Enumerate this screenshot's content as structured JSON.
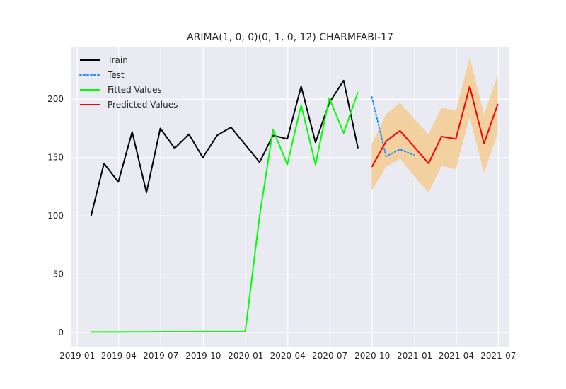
{
  "chart_data": {
    "type": "line",
    "title": "ARIMA(1, 0, 0)(0, 1, 0, 12) CHARMFABI-17",
    "xlabel": "",
    "ylabel": "",
    "x_range": [
      "2018-12-18",
      "2021-07-25"
    ],
    "ylim": [
      -12,
      245
    ],
    "x_ticks": [
      {
        "date": "2019-01-01",
        "label": "2019-01"
      },
      {
        "date": "2019-04-01",
        "label": "2019-04"
      },
      {
        "date": "2019-07-01",
        "label": "2019-07"
      },
      {
        "date": "2019-10-01",
        "label": "2019-10"
      },
      {
        "date": "2020-01-01",
        "label": "2020-01"
      },
      {
        "date": "2020-04-01",
        "label": "2020-04"
      },
      {
        "date": "2020-07-01",
        "label": "2020-07"
      },
      {
        "date": "2020-10-01",
        "label": "2020-10"
      },
      {
        "date": "2021-01-01",
        "label": "2021-01"
      },
      {
        "date": "2021-04-01",
        "label": "2021-04"
      },
      {
        "date": "2021-07-01",
        "label": "2021-07"
      }
    ],
    "y_ticks": [
      0,
      50,
      100,
      150,
      200
    ],
    "grid": true,
    "legend_position": "top-left",
    "series": [
      {
        "name": "Train",
        "color": "#000000",
        "style": "solid",
        "points": [
          [
            "2019-01-31",
            100
          ],
          [
            "2019-02-28",
            145
          ],
          [
            "2019-03-31",
            129
          ],
          [
            "2019-04-30",
            172
          ],
          [
            "2019-05-31",
            120
          ],
          [
            "2019-06-30",
            175
          ],
          [
            "2019-07-31",
            158
          ],
          [
            "2019-08-31",
            170
          ],
          [
            "2019-09-30",
            150
          ],
          [
            "2019-10-31",
            169
          ],
          [
            "2019-11-30",
            176
          ],
          [
            "2019-12-31",
            161
          ],
          [
            "2020-01-31",
            146
          ],
          [
            "2020-02-29",
            169
          ],
          [
            "2020-03-31",
            166
          ],
          [
            "2020-04-30",
            211
          ],
          [
            "2020-05-31",
            163
          ],
          [
            "2020-06-30",
            197
          ],
          [
            "2020-07-31",
            216
          ],
          [
            "2020-08-31",
            158
          ]
        ]
      },
      {
        "name": "Test",
        "color": "#1e90ff",
        "style": "dotted",
        "points": [
          [
            "2020-09-30",
            202
          ],
          [
            "2020-10-31",
            151
          ],
          [
            "2020-11-30",
            157
          ],
          [
            "2020-12-31",
            152
          ]
        ]
      },
      {
        "name": "Fitted Values",
        "color": "#00ff00",
        "style": "solid",
        "points": [
          [
            "2019-01-31",
            0.5
          ],
          [
            "2019-02-28",
            0.5
          ],
          [
            "2019-03-31",
            0.5
          ],
          [
            "2019-04-30",
            0.6
          ],
          [
            "2019-05-31",
            0.6
          ],
          [
            "2019-06-30",
            0.7
          ],
          [
            "2019-07-31",
            0.7
          ],
          [
            "2019-08-31",
            0.7
          ],
          [
            "2019-09-30",
            0.8
          ],
          [
            "2019-10-31",
            0.8
          ],
          [
            "2019-11-30",
            0.8
          ],
          [
            "2019-12-31",
            0.9
          ],
          [
            "2020-01-31",
            100
          ],
          [
            "2020-02-29",
            174
          ],
          [
            "2020-03-31",
            144
          ],
          [
            "2020-04-30",
            195
          ],
          [
            "2020-05-31",
            144
          ],
          [
            "2020-06-30",
            201
          ],
          [
            "2020-07-31",
            171
          ],
          [
            "2020-08-31",
            206
          ]
        ]
      },
      {
        "name": "Predicted Values",
        "color": "#ff0000",
        "style": "solid",
        "points": [
          [
            "2020-09-30",
            142
          ],
          [
            "2020-10-31",
            164
          ],
          [
            "2020-11-30",
            173
          ],
          [
            "2020-12-31",
            159
          ],
          [
            "2021-01-31",
            145
          ],
          [
            "2021-02-28",
            168
          ],
          [
            "2021-03-31",
            166
          ],
          [
            "2021-04-30",
            211
          ],
          [
            "2021-05-31",
            162
          ],
          [
            "2021-06-30",
            196
          ]
        ]
      }
    ],
    "confidence_band": {
      "color": "#f5c98a",
      "points": [
        [
          "2020-09-30",
          122,
          162
        ],
        [
          "2020-10-31",
          142,
          187
        ],
        [
          "2020-11-30",
          149,
          197
        ],
        [
          "2020-12-31",
          134,
          183
        ],
        [
          "2021-01-31",
          120,
          170
        ],
        [
          "2021-02-28",
          143,
          193
        ],
        [
          "2021-03-31",
          140,
          190
        ],
        [
          "2021-04-30",
          185,
          236
        ],
        [
          "2021-05-31",
          137,
          187
        ],
        [
          "2021-06-30",
          171,
          221
        ]
      ]
    }
  }
}
